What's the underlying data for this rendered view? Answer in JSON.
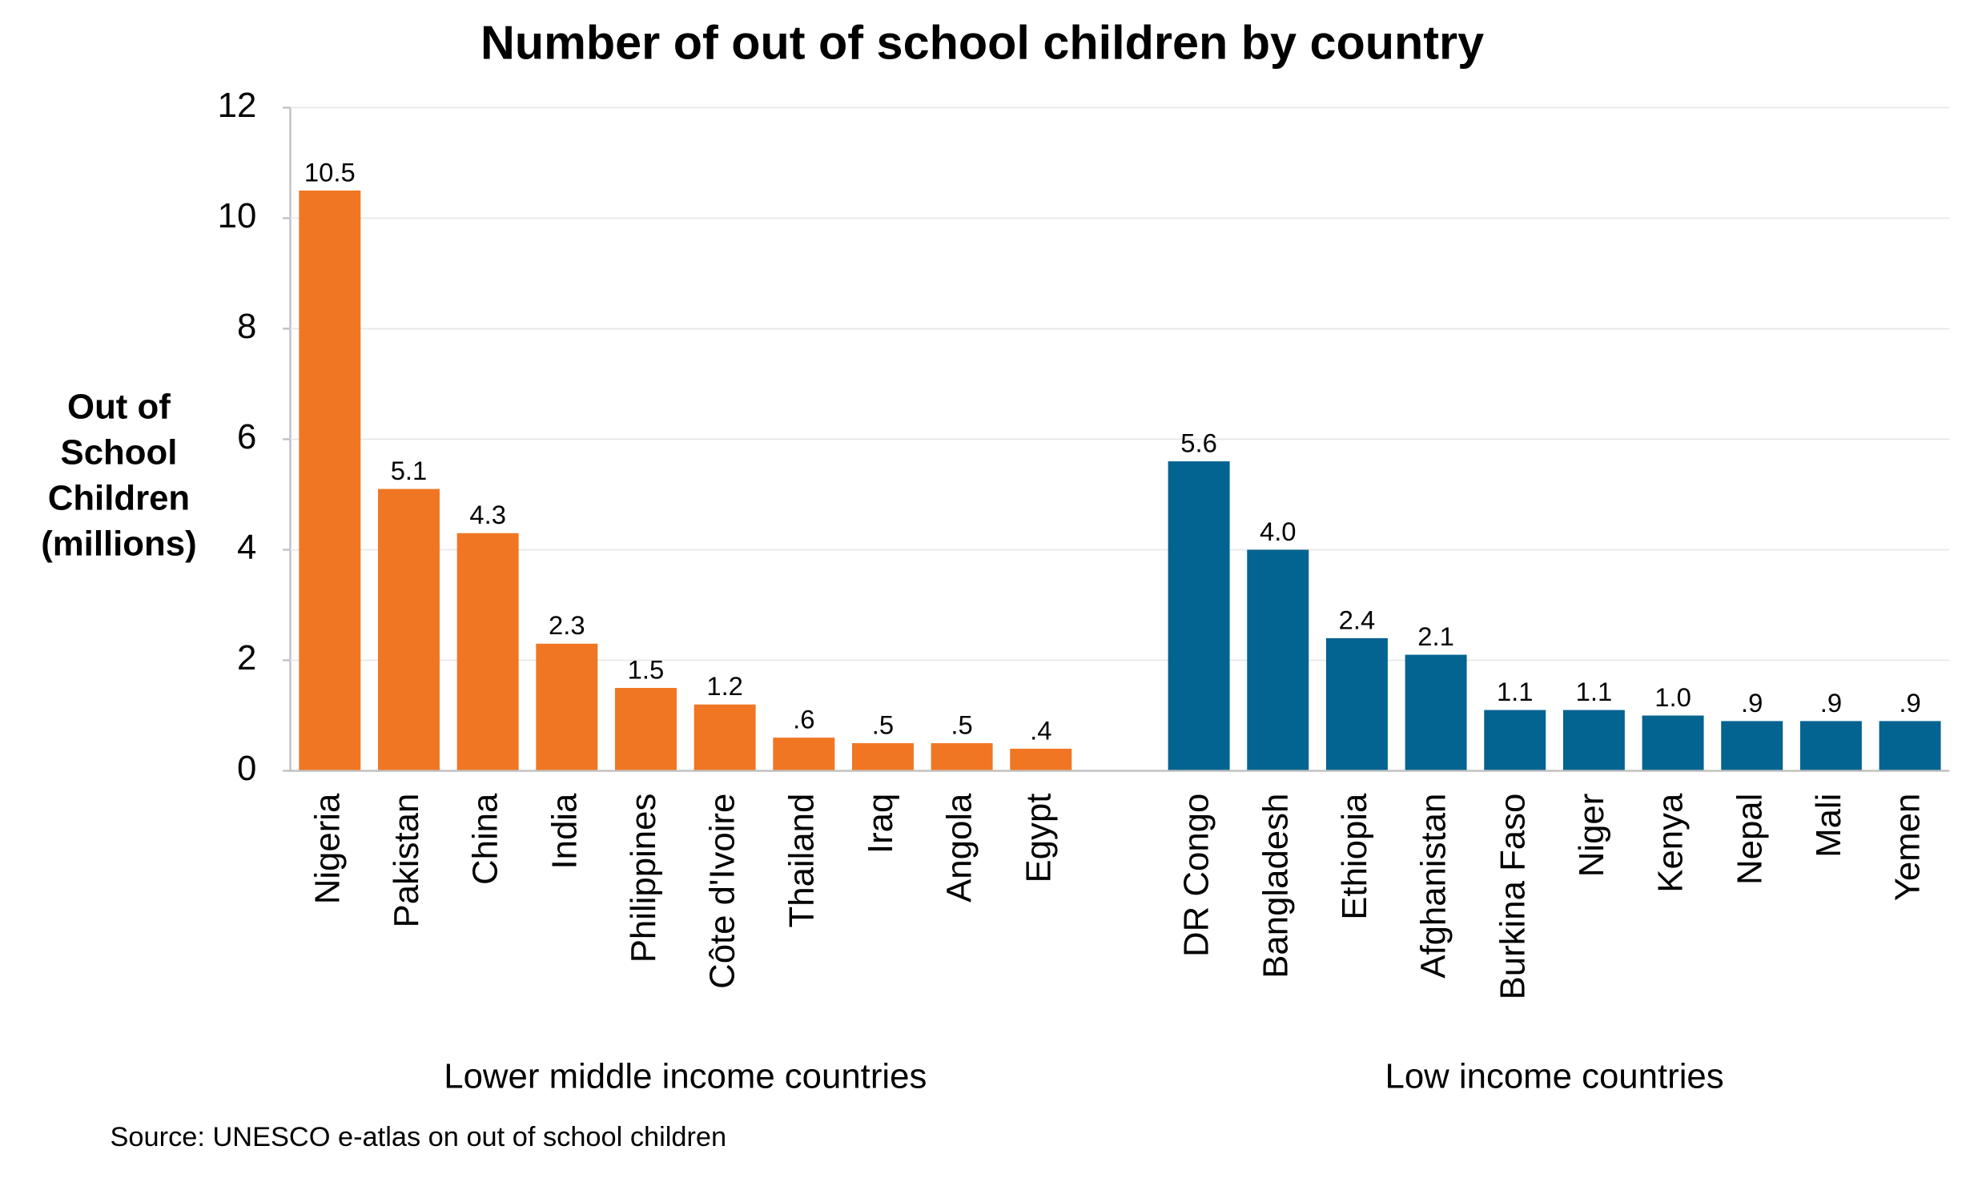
{
  "chart_data": {
    "type": "bar",
    "title": "Number of out of school children by country",
    "ylabel": [
      "Out of",
      "School",
      "Children",
      "(millions)"
    ],
    "ylim": [
      0,
      12
    ],
    "yticks": [
      0,
      2,
      4,
      6,
      8,
      10,
      12
    ],
    "grid": true,
    "groups": [
      {
        "label": "Lower middle income countries",
        "color": "#f07623",
        "categories": [
          "Nigeria",
          "Pakistan",
          "China",
          "India",
          "Philippines",
          "Côte d'Ivoire",
          "Thailand",
          "Iraq",
          "Angola",
          "Egypt"
        ],
        "values": [
          10.5,
          5.1,
          4.3,
          2.3,
          1.5,
          1.2,
          0.6,
          0.5,
          0.5,
          0.4
        ],
        "value_labels": [
          "10.5",
          "5.1",
          "4.3",
          "2.3",
          "1.5",
          "1.2",
          ".6",
          ".5",
          ".5",
          ".4"
        ]
      },
      {
        "label": "Low income countries",
        "color": "#036391",
        "categories": [
          "DR Congo",
          "Bangladesh",
          "Ethiopia",
          "Afghanistan",
          "Burkina Faso",
          "Niger",
          "Kenya",
          "Nepal",
          "Mali",
          "Yemen"
        ],
        "values": [
          5.6,
          4.0,
          2.4,
          2.1,
          1.1,
          1.1,
          1.0,
          0.9,
          0.9,
          0.9
        ],
        "value_labels": [
          "5.6",
          "4.0",
          "2.4",
          "2.1",
          "1.1",
          "1.1",
          "1.0",
          ".9",
          ".9",
          ".9"
        ]
      }
    ],
    "source": "Source: UNESCO e-atlas on out of school children"
  }
}
